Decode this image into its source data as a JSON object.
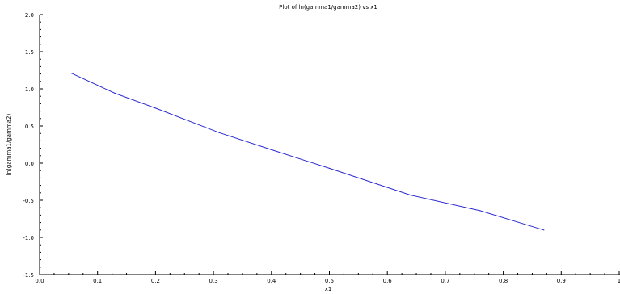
{
  "chart_data": {
    "type": "line",
    "title": "Plot of ln(gamma1/gamma2) vs x1",
    "xlabel": "x1",
    "ylabel": "ln(gamma1/gamma2)",
    "xlim": [
      0.0,
      1.0
    ],
    "ylim": [
      -1.5,
      2.0
    ],
    "xticks": [
      "0.0",
      "0.1",
      "0.2",
      "0.3",
      "0.4",
      "0.5",
      "0.6",
      "0.7",
      "0.8",
      "0.9",
      "1"
    ],
    "yticks": [
      "-1.5",
      "-1.0",
      "-0.5",
      "0.0",
      "0.5",
      "1.0",
      "1.5",
      "2.0"
    ],
    "grid": false,
    "series": [
      {
        "color": "#2b2bcf",
        "x": [
          0.055,
          0.13,
          0.2,
          0.31,
          0.4,
          0.5,
          0.64,
          0.76,
          0.87
        ],
        "y": [
          1.21,
          0.94,
          0.74,
          0.41,
          0.18,
          -0.07,
          -0.43,
          -0.64,
          -0.9
        ]
      }
    ]
  }
}
